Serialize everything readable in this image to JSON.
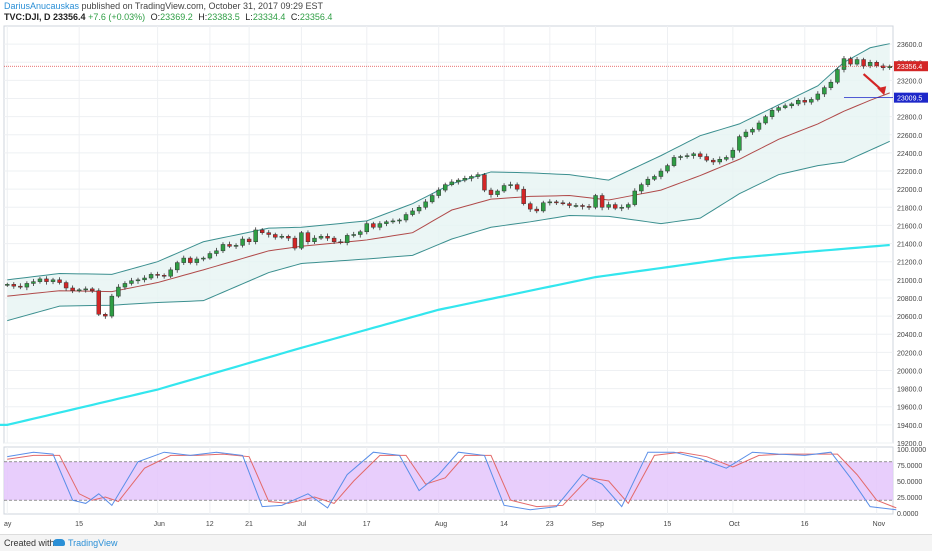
{
  "header": {
    "author": "DariusAnucauskas",
    "published_text": " published on TradingView.com, October 31, 2017 09:29 EST",
    "symbol": "TVC:DJI, D",
    "last": "23356.4",
    "change": "+7.6 (+0.03%)",
    "o_label": "O:",
    "o_value": "23369.2",
    "h_label": "H:",
    "h_value": "23383.5",
    "l_label": "L:",
    "l_value": "23334.4",
    "c_label": "C:",
    "c_value": "23356.4"
  },
  "footer": {
    "created_label": "Created with",
    "brand": "TradingView"
  },
  "colors": {
    "up": "#2e9e44",
    "down": "#d32626",
    "bb_band": "#3b8f8f",
    "bb_mid": "#b04a4a",
    "ma": "#33e6ee",
    "stoch_fill": "#e4c6fb",
    "stoch_k": "#5a8ee8",
    "stoch_d": "#e36a6a",
    "price_line": "#e04444",
    "target_label": "#1d27c9"
  },
  "chart_data": {
    "type": "candlestick",
    "price_axis": {
      "min": 19200,
      "max": 23800,
      "ticks": [
        "23600.0",
        "23400.0",
        "23200.0",
        "23000.0",
        "22800.0",
        "22600.0",
        "22400.0",
        "22200.0",
        "22000.0",
        "21800.0",
        "21600.0",
        "21400.0",
        "21200.0",
        "21000.0",
        "20800.0",
        "20600.0",
        "20400.0",
        "20200.0",
        "20000.0",
        "19800.0",
        "19600.0",
        "19400.0",
        "19200.0"
      ]
    },
    "time_axis": {
      "labels": [
        {
          "text": "ay",
          "index": 0
        },
        {
          "text": "15",
          "index": 11
        },
        {
          "text": "Jun",
          "index": 23
        },
        {
          "text": "12",
          "index": 31
        },
        {
          "text": "21",
          "index": 37
        },
        {
          "text": "Jul",
          "index": 45
        },
        {
          "text": "17",
          "index": 55
        },
        {
          "text": "Aug",
          "index": 66
        },
        {
          "text": "14",
          "index": 76
        },
        {
          "text": "23",
          "index": 83
        },
        {
          "text": "Sep",
          "index": 90
        },
        {
          "text": "15",
          "index": 101
        },
        {
          "text": "Oct",
          "index": 111
        },
        {
          "text": "16",
          "index": 122
        },
        {
          "text": "Nov",
          "index": 133
        }
      ]
    },
    "current_price": {
      "value": 23356.4,
      "label": "23356.4"
    },
    "target_level": {
      "value": 23009.5,
      "label": "23009.5"
    },
    "closes": [
      20950,
      20930,
      20920,
      20960,
      20980,
      21010,
      20980,
      21000,
      20970,
      20910,
      20880,
      20890,
      20900,
      20880,
      20620,
      20600,
      20820,
      20920,
      20960,
      20990,
      21000,
      21020,
      21060,
      21050,
      21040,
      21110,
      21190,
      21240,
      21190,
      21230,
      21240,
      21290,
      21320,
      21390,
      21370,
      21380,
      21450,
      21420,
      21550,
      21520,
      21500,
      21470,
      21480,
      21460,
      21350,
      21520,
      21420,
      21460,
      21480,
      21460,
      21420,
      21410,
      21490,
      21500,
      21530,
      21620,
      21580,
      21620,
      21640,
      21650,
      21660,
      21720,
      21760,
      21800,
      21860,
      21930,
      21990,
      22050,
      22080,
      22100,
      22120,
      22140,
      22160,
      21990,
      21940,
      21980,
      22040,
      22050,
      22000,
      21840,
      21780,
      21760,
      21850,
      21860,
      21850,
      21840,
      21820,
      21820,
      21810,
      21800,
      21930,
      21800,
      21830,
      21790,
      21800,
      21830,
      21980,
      22050,
      22110,
      22140,
      22200,
      22260,
      22350,
      22360,
      22370,
      22390,
      22360,
      22320,
      22300,
      22330,
      22350,
      22430,
      22580,
      22630,
      22660,
      22730,
      22800,
      22870,
      22900,
      22920,
      22940,
      22980,
      22960,
      22990,
      23050,
      23120,
      23180,
      23320,
      23440,
      23380,
      23430,
      23360,
      23400,
      23360,
      23340,
      23356
    ],
    "bollinger": {
      "upper": [
        [
          0,
          21000
        ],
        [
          8,
          21070
        ],
        [
          16,
          21060
        ],
        [
          23,
          21200
        ],
        [
          30,
          21420
        ],
        [
          40,
          21570
        ],
        [
          45,
          21580
        ],
        [
          55,
          21650
        ],
        [
          62,
          21840
        ],
        [
          68,
          22060
        ],
        [
          74,
          22190
        ],
        [
          80,
          22180
        ],
        [
          86,
          22160
        ],
        [
          92,
          22100
        ],
        [
          100,
          22370
        ],
        [
          106,
          22590
        ],
        [
          112,
          22720
        ],
        [
          118,
          22930
        ],
        [
          124,
          23140
        ],
        [
          128,
          23400
        ],
        [
          132,
          23560
        ],
        [
          136,
          23620
        ]
      ],
      "middle": [
        [
          0,
          20820
        ],
        [
          8,
          20880
        ],
        [
          16,
          20870
        ],
        [
          23,
          20970
        ],
        [
          30,
          21110
        ],
        [
          40,
          21320
        ],
        [
          45,
          21370
        ],
        [
          55,
          21440
        ],
        [
          62,
          21520
        ],
        [
          68,
          21770
        ],
        [
          74,
          21890
        ],
        [
          80,
          21920
        ],
        [
          86,
          21930
        ],
        [
          92,
          21880
        ],
        [
          100,
          21990
        ],
        [
          106,
          22150
        ],
        [
          112,
          22330
        ],
        [
          118,
          22550
        ],
        [
          124,
          22720
        ],
        [
          128,
          22860
        ],
        [
          132,
          22980
        ],
        [
          136,
          23090
        ]
      ],
      "lower": [
        [
          0,
          20550
        ],
        [
          8,
          20710
        ],
        [
          16,
          20720
        ],
        [
          23,
          20750
        ],
        [
          30,
          20770
        ],
        [
          40,
          21080
        ],
        [
          45,
          21180
        ],
        [
          55,
          21230
        ],
        [
          62,
          21270
        ],
        [
          68,
          21450
        ],
        [
          74,
          21580
        ],
        [
          80,
          21640
        ],
        [
          86,
          21710
        ],
        [
          92,
          21700
        ],
        [
          100,
          21620
        ],
        [
          106,
          21680
        ],
        [
          112,
          21950
        ],
        [
          118,
          22160
        ],
        [
          124,
          22260
        ],
        [
          128,
          22300
        ],
        [
          132,
          22430
        ],
        [
          136,
          22560
        ]
      ]
    },
    "moving_average": [
      [
        0,
        19400
      ],
      [
        23,
        19790
      ],
      [
        45,
        20250
      ],
      [
        66,
        20670
      ],
      [
        90,
        21030
      ],
      [
        111,
        21240
      ],
      [
        136,
        21390
      ]
    ],
    "stochastic": {
      "ticks": [
        "100.0000",
        "75.0000",
        "50.0000",
        "25.0000",
        "0.0000"
      ],
      "overbought": 80,
      "oversold": 20,
      "k": [
        [
          0,
          88
        ],
        [
          4,
          95
        ],
        [
          7,
          92
        ],
        [
          10,
          20
        ],
        [
          12,
          15
        ],
        [
          14,
          30
        ],
        [
          16,
          12
        ],
        [
          20,
          80
        ],
        [
          24,
          95
        ],
        [
          28,
          90
        ],
        [
          32,
          95
        ],
        [
          36,
          90
        ],
        [
          39,
          10
        ],
        [
          42,
          12
        ],
        [
          46,
          30
        ],
        [
          49,
          8
        ],
        [
          52,
          60
        ],
        [
          56,
          95
        ],
        [
          60,
          90
        ],
        [
          63,
          35
        ],
        [
          66,
          60
        ],
        [
          69,
          95
        ],
        [
          73,
          90
        ],
        [
          76,
          12
        ],
        [
          80,
          5
        ],
        [
          84,
          10
        ],
        [
          88,
          60
        ],
        [
          91,
          45
        ],
        [
          94,
          10
        ],
        [
          98,
          95
        ],
        [
          102,
          95
        ],
        [
          106,
          85
        ],
        [
          110,
          70
        ],
        [
          114,
          95
        ],
        [
          118,
          92
        ],
        [
          122,
          90
        ],
        [
          126,
          95
        ],
        [
          129,
          55
        ],
        [
          132,
          10
        ],
        [
          136,
          5
        ]
      ],
      "d": [
        [
          0,
          84
        ],
        [
          4,
          90
        ],
        [
          8,
          90
        ],
        [
          11,
          30
        ],
        [
          13,
          20
        ],
        [
          15,
          25
        ],
        [
          17,
          18
        ],
        [
          21,
          70
        ],
        [
          25,
          90
        ],
        [
          29,
          90
        ],
        [
          33,
          92
        ],
        [
          37,
          88
        ],
        [
          40,
          18
        ],
        [
          43,
          15
        ],
        [
          47,
          25
        ],
        [
          50,
          15
        ],
        [
          53,
          50
        ],
        [
          57,
          90
        ],
        [
          61,
          90
        ],
        [
          64,
          45
        ],
        [
          67,
          55
        ],
        [
          70,
          90
        ],
        [
          74,
          90
        ],
        [
          77,
          20
        ],
        [
          81,
          10
        ],
        [
          85,
          12
        ],
        [
          89,
          55
        ],
        [
          92,
          50
        ],
        [
          95,
          15
        ],
        [
          99,
          90
        ],
        [
          103,
          95
        ],
        [
          107,
          88
        ],
        [
          111,
          72
        ],
        [
          115,
          90
        ],
        [
          119,
          92
        ],
        [
          123,
          92
        ],
        [
          127,
          92
        ],
        [
          130,
          60
        ],
        [
          133,
          20
        ],
        [
          136,
          8
        ]
      ]
    }
  }
}
